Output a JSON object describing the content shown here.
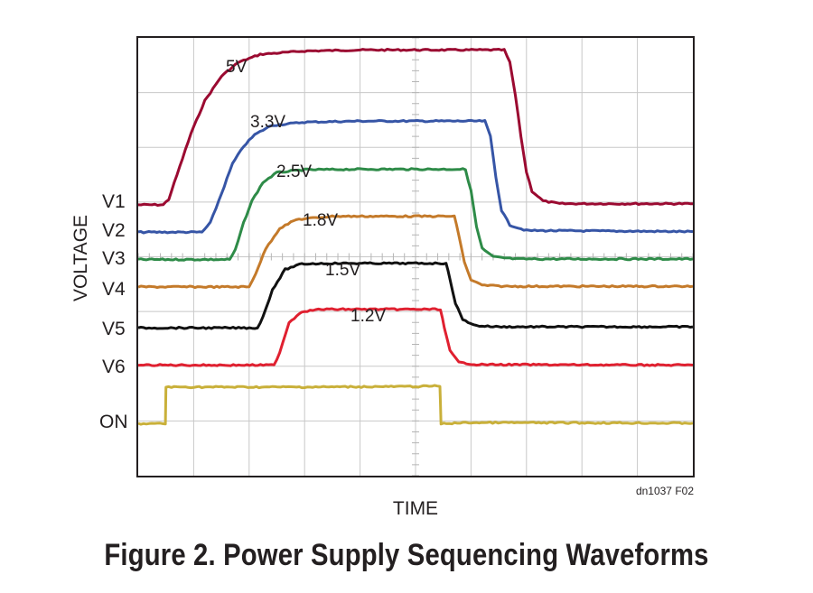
{
  "caption": "Figure 2. Power Supply Sequencing Waveforms",
  "chart_data": {
    "type": "line",
    "title": "",
    "xlabel": "TIME",
    "ylabel": "VOLTAGE",
    "source_code": "dn1037 F02",
    "grid": true,
    "grid_divisions": {
      "x": 10,
      "y": 8
    },
    "x_range": [
      0,
      10
    ],
    "y_range": [
      0,
      8
    ],
    "series": [
      {
        "name": "V1",
        "level_label": "5V",
        "color": "#9b0a31",
        "points": [
          [
            0.0,
            4.95
          ],
          [
            0.45,
            4.95
          ],
          [
            0.55,
            5.05
          ],
          [
            0.75,
            5.65
          ],
          [
            0.95,
            6.25
          ],
          [
            1.2,
            6.85
          ],
          [
            1.5,
            7.3
          ],
          [
            1.8,
            7.55
          ],
          [
            2.2,
            7.7
          ],
          [
            3.0,
            7.76
          ],
          [
            4.0,
            7.78
          ],
          [
            6.6,
            7.78
          ],
          [
            6.7,
            7.55
          ],
          [
            6.8,
            6.95
          ],
          [
            6.9,
            6.2
          ],
          [
            7.0,
            5.55
          ],
          [
            7.1,
            5.2
          ],
          [
            7.3,
            5.02
          ],
          [
            7.6,
            4.97
          ],
          [
            10.0,
            4.97
          ]
        ]
      },
      {
        "name": "V2",
        "level_label": "3.3V",
        "color": "#3655a6",
        "points": [
          [
            0.0,
            4.45
          ],
          [
            1.15,
            4.45
          ],
          [
            1.3,
            4.62
          ],
          [
            1.5,
            5.15
          ],
          [
            1.7,
            5.7
          ],
          [
            1.9,
            6.02
          ],
          [
            2.1,
            6.23
          ],
          [
            2.4,
            6.4
          ],
          [
            3.0,
            6.46
          ],
          [
            4.0,
            6.48
          ],
          [
            6.25,
            6.48
          ],
          [
            6.35,
            6.2
          ],
          [
            6.45,
            5.45
          ],
          [
            6.55,
            4.85
          ],
          [
            6.7,
            4.58
          ],
          [
            7.0,
            4.48
          ],
          [
            10.0,
            4.46
          ]
        ]
      },
      {
        "name": "V3",
        "level_label": "2.5V",
        "color": "#2e8b48",
        "points": [
          [
            0.0,
            3.95
          ],
          [
            1.65,
            3.95
          ],
          [
            1.75,
            4.12
          ],
          [
            1.9,
            4.62
          ],
          [
            2.05,
            5.02
          ],
          [
            2.25,
            5.36
          ],
          [
            2.5,
            5.54
          ],
          [
            3.0,
            5.59
          ],
          [
            4.0,
            5.6
          ],
          [
            5.9,
            5.6
          ],
          [
            6.0,
            5.2
          ],
          [
            6.1,
            4.55
          ],
          [
            6.2,
            4.15
          ],
          [
            6.4,
            4.0
          ],
          [
            6.8,
            3.96
          ],
          [
            10.0,
            3.96
          ]
        ]
      },
      {
        "name": "V4",
        "level_label": "1.8V",
        "color": "#c47a2a",
        "points": [
          [
            0.0,
            3.45
          ],
          [
            2.0,
            3.45
          ],
          [
            2.12,
            3.7
          ],
          [
            2.3,
            4.15
          ],
          [
            2.55,
            4.52
          ],
          [
            2.85,
            4.68
          ],
          [
            3.5,
            4.74
          ],
          [
            5.7,
            4.74
          ],
          [
            5.78,
            4.4
          ],
          [
            5.88,
            3.9
          ],
          [
            6.0,
            3.58
          ],
          [
            6.2,
            3.48
          ],
          [
            6.6,
            3.46
          ],
          [
            10.0,
            3.46
          ]
        ]
      },
      {
        "name": "V5",
        "level_label": "1.5V",
        "color": "#111111",
        "points": [
          [
            0.0,
            2.7
          ],
          [
            2.15,
            2.7
          ],
          [
            2.25,
            2.9
          ],
          [
            2.42,
            3.4
          ],
          [
            2.65,
            3.77
          ],
          [
            2.95,
            3.87
          ],
          [
            3.5,
            3.88
          ],
          [
            5.55,
            3.88
          ],
          [
            5.62,
            3.6
          ],
          [
            5.72,
            3.15
          ],
          [
            5.85,
            2.85
          ],
          [
            6.1,
            2.74
          ],
          [
            6.5,
            2.72
          ],
          [
            10.0,
            2.72
          ]
        ]
      },
      {
        "name": "V6",
        "level_label": "1.2V",
        "color": "#e02030",
        "points": [
          [
            0.0,
            2.02
          ],
          [
            2.45,
            2.02
          ],
          [
            2.55,
            2.25
          ],
          [
            2.72,
            2.8
          ],
          [
            2.95,
            3.0
          ],
          [
            3.3,
            3.04
          ],
          [
            5.45,
            3.04
          ],
          [
            5.52,
            2.7
          ],
          [
            5.62,
            2.28
          ],
          [
            5.78,
            2.07
          ],
          [
            6.1,
            2.03
          ],
          [
            10.0,
            2.02
          ]
        ]
      },
      {
        "name": "ON",
        "level_label": "",
        "color": "#c9b03a",
        "points": [
          [
            0.0,
            0.95
          ],
          [
            0.49,
            0.95
          ],
          [
            0.5,
            1.62
          ],
          [
            1.5,
            1.62
          ],
          [
            3.0,
            1.62
          ],
          [
            5.0,
            1.63
          ],
          [
            5.44,
            1.64
          ],
          [
            5.46,
            0.95
          ],
          [
            6.0,
            0.97
          ],
          [
            10.0,
            0.96
          ]
        ]
      }
    ]
  }
}
